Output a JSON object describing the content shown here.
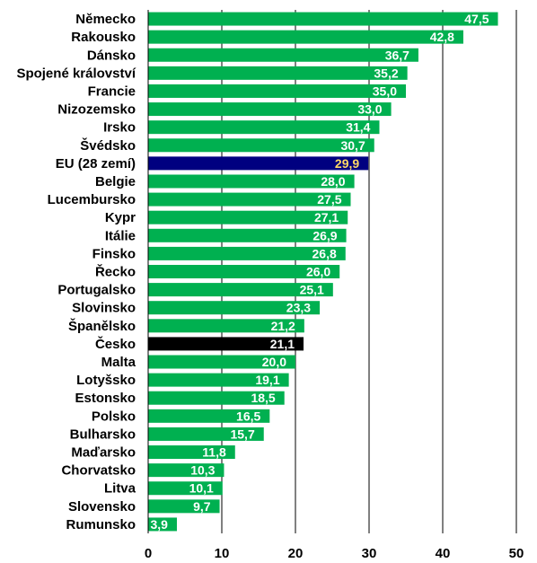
{
  "chart_data": {
    "type": "bar",
    "orientation": "horizontal",
    "categories": [
      "Německo",
      "Rakousko",
      "Dánsko",
      "Spojené království",
      "Francie",
      "Nizozemsko",
      "Irsko",
      "Švédsko",
      "EU (28 zemí)",
      "Belgie",
      "Lucembursko",
      "Kypr",
      "Itálie",
      "Finsko",
      "Řecko",
      "Portugalsko",
      "Slovinsko",
      "Španělsko",
      "Česko",
      "Malta",
      "Lotyšsko",
      "Estonsko",
      "Polsko",
      "Bulharsko",
      "Maďarsko",
      "Chorvatsko",
      "Litva",
      "Slovensko",
      "Rumunsko"
    ],
    "values": [
      47.5,
      42.8,
      36.7,
      35.2,
      35.0,
      33.0,
      31.4,
      30.7,
      29.9,
      28.0,
      27.5,
      27.1,
      26.9,
      26.8,
      26.0,
      25.1,
      23.3,
      21.2,
      21.1,
      20.0,
      19.1,
      18.5,
      16.5,
      15.7,
      11.8,
      10.3,
      10.1,
      9.7,
      3.9
    ],
    "value_labels": [
      "47,5",
      "42,8",
      "36,7",
      "35,2",
      "35,0",
      "33,0",
      "31,4",
      "30,7",
      "29,9",
      "28,0",
      "27,5",
      "27,1",
      "26,9",
      "26,8",
      "26,0",
      "25,1",
      "23,3",
      "21,2",
      "21,1",
      "20,0",
      "19,1",
      "18,5",
      "16,5",
      "15,7",
      "11,8",
      "10,3",
      "10,1",
      "9,7",
      "3,9"
    ],
    "highlights": {
      "EU (28 zemí)": "#000080",
      "Česko": "#000000"
    },
    "xlim": [
      0,
      50
    ],
    "xticks": [
      0,
      10,
      20,
      30,
      40,
      50
    ],
    "title": "",
    "xlabel": "",
    "ylabel": "",
    "grid": "vertical",
    "legend": "none"
  },
  "colors": {
    "bar": "#00B050",
    "eu_bar": "#000080",
    "cz_bar": "#000000",
    "label_default": "#ffffff",
    "label_eu": "#FFD966",
    "grid": "#000000"
  }
}
